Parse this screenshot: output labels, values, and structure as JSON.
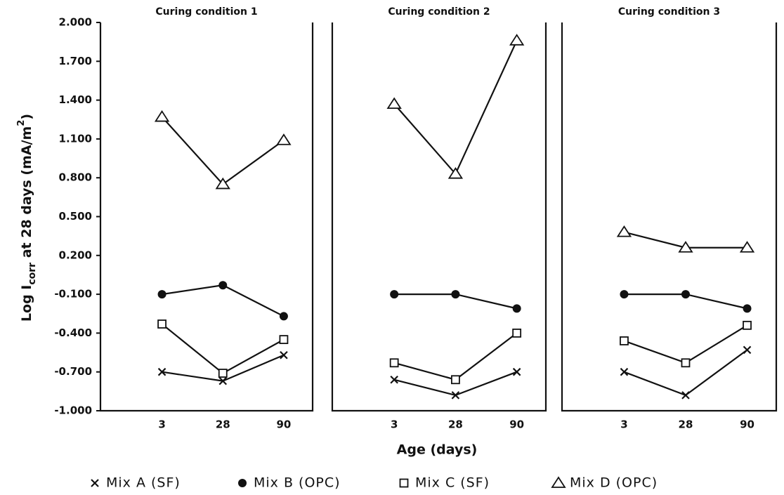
{
  "chart_data": [
    {
      "type": "line",
      "title": "Curing condition 1",
      "categories": [
        "3",
        "28",
        "90"
      ],
      "y_label": [
        "Log I",
        "corr",
        " at 28 days (mA/m",
        "2",
        ")"
      ],
      "x_label": "Age (days)",
      "ylim": [
        -1.0,
        2.0
      ],
      "yticks": [
        {
          "value": 2.0,
          "label": "2.000"
        },
        {
          "value": 1.7,
          "label": "1.700"
        },
        {
          "value": 1.4,
          "label": "1.400"
        },
        {
          "value": 1.1,
          "label": "1.100"
        },
        {
          "value": 0.8,
          "label": "0.800"
        },
        {
          "value": 0.5,
          "label": "0.500"
        },
        {
          "value": 0.2,
          "label": "0.200"
        },
        {
          "value": -0.1,
          "label": "-0.100"
        },
        {
          "value": -0.4,
          "label": "-0.400"
        },
        {
          "value": -0.7,
          "label": "-0.700"
        },
        {
          "value": -1.0,
          "label": "-1.000"
        }
      ],
      "series": [
        {
          "name": "Mix A (SF)",
          "color": "#111111",
          "marker": "x",
          "values": [
            -0.7,
            -0.77,
            -0.57
          ]
        },
        {
          "name": "Mix B (OPC)",
          "color": "#111111",
          "marker": "circle",
          "values": [
            -0.1,
            -0.03,
            -0.27
          ]
        },
        {
          "name": "Mix C (SF)",
          "color": "#111111",
          "marker": "square",
          "values": [
            -0.33,
            -0.71,
            -0.45
          ]
        },
        {
          "name": "Mix D (OPC)",
          "color": "#111111",
          "marker": "triangle",
          "values": [
            1.27,
            0.75,
            1.09
          ]
        }
      ]
    },
    {
      "type": "line",
      "title": "Curing condition 2",
      "categories": [
        "3",
        "28",
        "90"
      ],
      "ylim": [
        -1.0,
        2.0
      ],
      "series": [
        {
          "color": "#111111",
          "marker": "x",
          "values": [
            -0.76,
            -0.88,
            -0.7
          ]
        },
        {
          "color": "#111111",
          "marker": "circle",
          "values": [
            -0.1,
            -0.1,
            -0.21
          ]
        },
        {
          "color": "#111111",
          "marker": "square",
          "values": [
            -0.63,
            -0.76,
            -0.4
          ]
        },
        {
          "color": "#111111",
          "marker": "triangle",
          "values": [
            1.37,
            0.83,
            1.86
          ]
        }
      ]
    },
    {
      "type": "line",
      "title": "Curing condition 3",
      "categories": [
        "3",
        "28",
        "90"
      ],
      "ylim": [
        -1.0,
        2.0
      ],
      "series": [
        {
          "color": "#111111",
          "marker": "x",
          "values": [
            -0.7,
            -0.88,
            -0.53
          ]
        },
        {
          "color": "#111111",
          "marker": "circle",
          "values": [
            -0.1,
            -0.1,
            -0.21
          ]
        },
        {
          "color": "#111111",
          "marker": "square",
          "values": [
            -0.46,
            -0.63,
            -0.34
          ]
        },
        {
          "color": "#111111",
          "marker": "triangle",
          "values": [
            0.38,
            0.26,
            0.26
          ]
        }
      ]
    }
  ]
}
